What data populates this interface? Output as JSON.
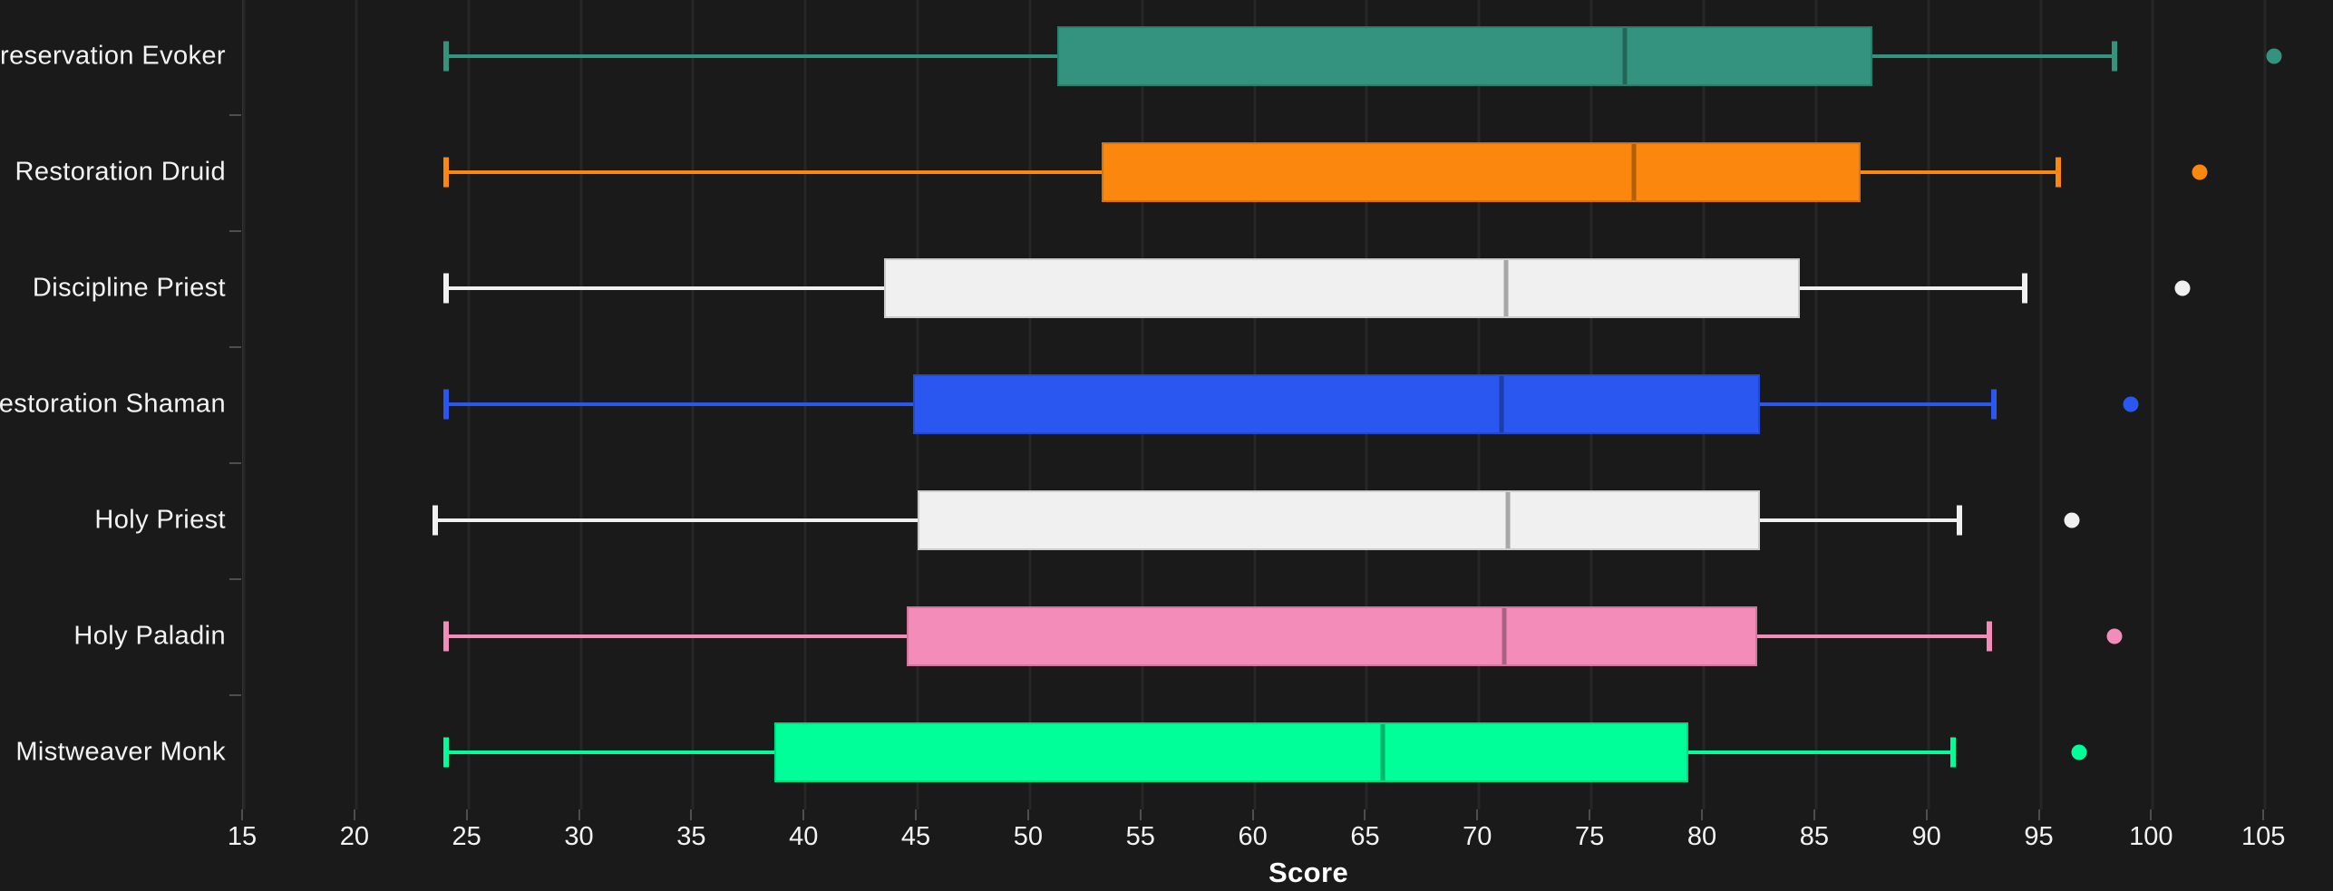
{
  "figure": {
    "background": "#1A1A1A",
    "grid_color": "#272727",
    "axis_spine_color": "#3C3C3C",
    "tick_color": "#4E4E4E",
    "text_color": "#F3F3F3"
  },
  "chart_data": {
    "type": "boxplot",
    "orientation": "horizontal",
    "title": "",
    "xlabel": "Score",
    "ylabel": "",
    "x_axis": {
      "min": 15,
      "max": 108.1,
      "tick_step": 5,
      "ticks": [
        15,
        20,
        25,
        30,
        35,
        40,
        45,
        50,
        55,
        60,
        65,
        70,
        75,
        80,
        85,
        90,
        95,
        100,
        105
      ],
      "gridlines": true
    },
    "categories": [
      "Preservation Evoker",
      "Restoration Druid",
      "Discipline Priest",
      "Restoration Shaman",
      "Holy Priest",
      "Holy Paladin",
      "Mistweaver Monk"
    ],
    "series": [
      {
        "label": "Preservation Evoker",
        "color": "#33937F",
        "whisker_low": 24,
        "q1": 51.2,
        "median": 76.5,
        "q3": 87.5,
        "whisker_high": 98.3,
        "outliers": [
          105.4
        ]
      },
      {
        "label": "Restoration Druid",
        "color": "#FB870F",
        "whisker_low": 24,
        "q1": 53.2,
        "median": 76.9,
        "q3": 87.0,
        "whisker_high": 95.8,
        "outliers": [
          102.1
        ]
      },
      {
        "label": "Discipline Priest",
        "color": "#F0F0F0",
        "whisker_low": 24,
        "q1": 43.5,
        "median": 71.2,
        "q3": 84.3,
        "whisker_high": 94.3,
        "outliers": [
          101.3
        ]
      },
      {
        "label": "Restoration Shaman",
        "color": "#2A57F0",
        "whisker_low": 24,
        "q1": 44.8,
        "median": 71.0,
        "q3": 82.5,
        "whisker_high": 92.9,
        "outliers": [
          99.0
        ]
      },
      {
        "label": "Holy Priest",
        "color": "#F0F0F0",
        "whisker_low": 23.5,
        "q1": 45.0,
        "median": 71.3,
        "q3": 82.5,
        "whisker_high": 91.4,
        "outliers": [
          96.4
        ]
      },
      {
        "label": "Holy Paladin",
        "color": "#F48CBA",
        "whisker_low": 24,
        "q1": 44.5,
        "median": 71.1,
        "q3": 82.4,
        "whisker_high": 92.7,
        "outliers": [
          98.3
        ]
      },
      {
        "label": "Mistweaver Monk",
        "color": "#00FF98",
        "whisker_low": 24,
        "q1": 38.6,
        "median": 65.7,
        "q3": 79.3,
        "whisker_high": 91.1,
        "outliers": [
          96.7
        ]
      }
    ]
  }
}
